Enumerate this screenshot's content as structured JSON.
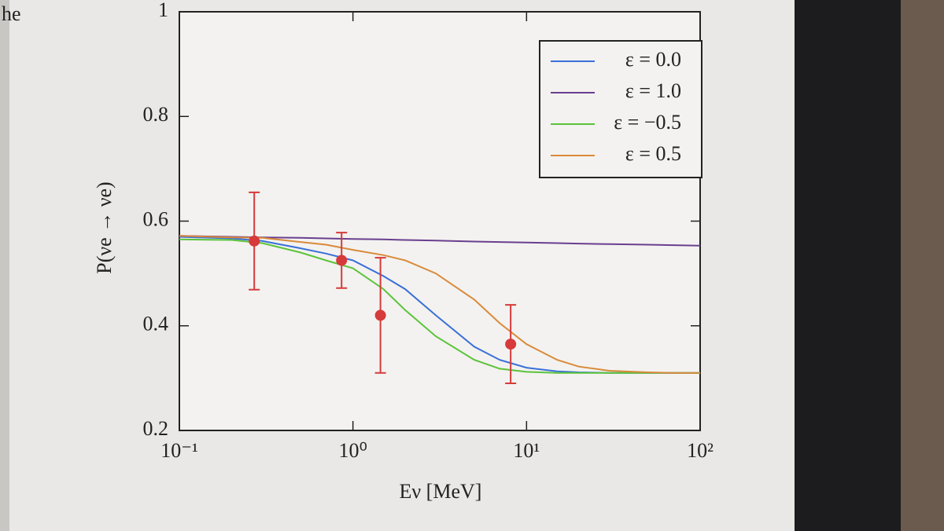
{
  "page_fragment": "he",
  "chart_data": {
    "type": "line",
    "xlabel": "Eν [MeV]",
    "ylabel": "P(νe → νe)",
    "xscale": "log",
    "xlim": [
      0.1,
      100
    ],
    "xticks": [
      {
        "value": 0.1,
        "label": "10⁻¹"
      },
      {
        "value": 1,
        "label": "10⁰"
      },
      {
        "value": 10,
        "label": "10¹"
      },
      {
        "value": 100,
        "label": "10²"
      }
    ],
    "ylim": [
      0.2,
      1
    ],
    "yticks": [
      0.2,
      0.4,
      0.6,
      0.8,
      1
    ],
    "legend": "upper right",
    "x": [
      0.1,
      0.2,
      0.3,
      0.5,
      0.7,
      1,
      1.5,
      2,
      3,
      5,
      7,
      10,
      15,
      20,
      30,
      50,
      70,
      100
    ],
    "series": [
      {
        "name": "ε = 0.0",
        "color": "#3a6fd8",
        "values": [
          0.57,
          0.567,
          0.562,
          0.548,
          0.538,
          0.525,
          0.495,
          0.47,
          0.42,
          0.36,
          0.335,
          0.32,
          0.313,
          0.311,
          0.31,
          0.31,
          0.31,
          0.31
        ]
      },
      {
        "name": "ε = 1.0",
        "color": "#6a3f8f",
        "values": [
          0.572,
          0.57,
          0.569,
          0.568,
          0.567,
          0.566,
          0.565,
          0.564,
          0.563,
          0.561,
          0.56,
          0.559,
          0.558,
          0.557,
          0.556,
          0.555,
          0.554,
          0.553
        ]
      },
      {
        "name": "ε = −0.5",
        "color": "#5cc33a",
        "values": [
          0.565,
          0.564,
          0.558,
          0.54,
          0.525,
          0.51,
          0.47,
          0.43,
          0.38,
          0.335,
          0.318,
          0.312,
          0.31,
          0.31,
          0.31,
          0.31,
          0.31,
          0.31
        ]
      },
      {
        "name": "ε = 0.5",
        "color": "#d98a3a",
        "values": [
          0.572,
          0.569,
          0.568,
          0.56,
          0.555,
          0.545,
          0.535,
          0.525,
          0.5,
          0.45,
          0.405,
          0.365,
          0.335,
          0.322,
          0.314,
          0.311,
          0.31,
          0.31
        ]
      }
    ],
    "measurements": {
      "color": "#d63a3a",
      "x": [
        0.27,
        0.86,
        1.44,
        8.1
      ],
      "values": [
        0.562,
        0.525,
        0.42,
        0.365
      ],
      "errors": [
        0.093,
        0.053,
        0.11,
        0.075
      ]
    }
  }
}
